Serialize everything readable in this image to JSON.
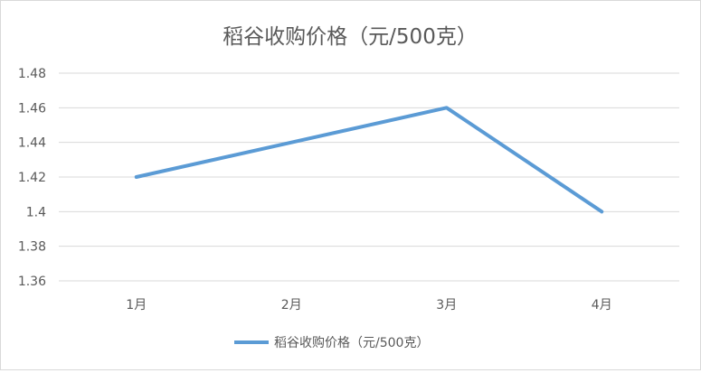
{
  "chart_data": {
    "type": "line",
    "title": "稻谷收购价格（元/500克）",
    "xlabel": "",
    "ylabel": "",
    "categories": [
      "1月",
      "2月",
      "3月",
      "4月"
    ],
    "series": [
      {
        "name": "稻谷收购价格（元/500克）",
        "values": [
          1.42,
          1.44,
          1.46,
          1.4
        ],
        "color": "#5b9bd5"
      }
    ],
    "ylim": [
      1.36,
      1.48
    ],
    "yticks": [
      "1.36",
      "1.38",
      "1.4",
      "1.42",
      "1.44",
      "1.46",
      "1.48"
    ],
    "grid": true,
    "legend": "bottom"
  }
}
